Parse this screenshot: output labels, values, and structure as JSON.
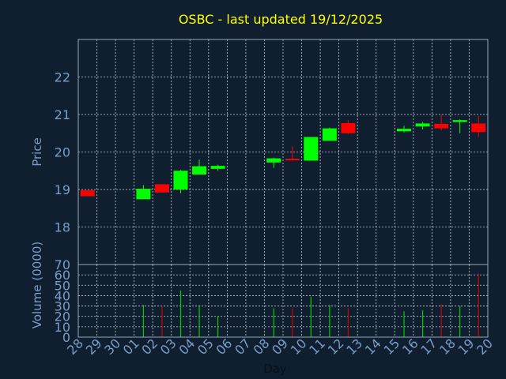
{
  "chart_data": [
    {
      "type": "candlestick",
      "title": "OSBC - last updated 19/12/2025",
      "ylabel": "Price",
      "ylim": [
        17,
        23
      ],
      "yticks": [
        18,
        19,
        20,
        21,
        22
      ],
      "grid": true,
      "categories": [
        "28",
        "29",
        "30",
        "01",
        "02",
        "03",
        "04",
        "05",
        "06",
        "07",
        "08",
        "09",
        "10",
        "11",
        "12",
        "13",
        "14",
        "15",
        "16",
        "17",
        "18",
        "19",
        "20"
      ],
      "candles": [
        {
          "day": "28",
          "open": 18.98,
          "close": 18.82,
          "high": 18.98,
          "low": 18.82
        },
        {
          "day": "01",
          "open": 18.74,
          "close": 19.02,
          "high": 19.12,
          "low": 18.74
        },
        {
          "day": "02",
          "open": 19.14,
          "close": 18.92,
          "high": 19.14,
          "low": 18.92
        },
        {
          "day": "03",
          "open": 19.0,
          "close": 19.5,
          "high": 19.52,
          "low": 18.9
        },
        {
          "day": "04",
          "open": 19.4,
          "close": 19.62,
          "high": 19.8,
          "low": 19.4
        },
        {
          "day": "05",
          "open": 19.55,
          "close": 19.63,
          "high": 19.66,
          "low": 19.5
        },
        {
          "day": "08",
          "open": 19.72,
          "close": 19.83,
          "high": 19.85,
          "low": 19.58
        },
        {
          "day": "09",
          "open": 19.82,
          "close": 19.8,
          "high": 20.15,
          "low": 19.78
        },
        {
          "day": "10",
          "open": 19.77,
          "close": 20.4,
          "high": 20.4,
          "low": 19.77
        },
        {
          "day": "11",
          "open": 20.3,
          "close": 20.63,
          "high": 20.65,
          "low": 20.3
        },
        {
          "day": "12",
          "open": 20.77,
          "close": 20.5,
          "high": 20.85,
          "low": 20.48
        },
        {
          "day": "15",
          "open": 20.55,
          "close": 20.62,
          "high": 20.7,
          "low": 20.52
        },
        {
          "day": "16",
          "open": 20.68,
          "close": 20.76,
          "high": 20.8,
          "low": 20.6
        },
        {
          "day": "17",
          "open": 20.75,
          "close": 20.63,
          "high": 21.0,
          "low": 20.58
        },
        {
          "day": "18",
          "open": 20.8,
          "close": 20.85,
          "high": 20.87,
          "low": 20.5
        },
        {
          "day": "19",
          "open": 20.76,
          "close": 20.53,
          "high": 20.95,
          "low": 20.4
        }
      ],
      "colors": {
        "up": "#00ff00",
        "down": "#ff0000"
      }
    },
    {
      "type": "bar",
      "ylabel": "Volume (0000)",
      "xlabel": "Day",
      "ylim": [
        0,
        70
      ],
      "yticks": [
        0,
        10,
        20,
        30,
        40,
        50,
        60,
        70
      ],
      "grid": true,
      "categories": [
        "28",
        "29",
        "30",
        "01",
        "02",
        "03",
        "04",
        "05",
        "06",
        "07",
        "08",
        "09",
        "10",
        "11",
        "12",
        "13",
        "14",
        "15",
        "16",
        "17",
        "18",
        "19",
        "20"
      ],
      "bars": [
        {
          "day": "01",
          "value": 31,
          "direction": "up"
        },
        {
          "day": "02",
          "value": 30,
          "direction": "down"
        },
        {
          "day": "03",
          "value": 45,
          "direction": "up"
        },
        {
          "day": "04",
          "value": 31,
          "direction": "up"
        },
        {
          "day": "05",
          "value": 20,
          "direction": "up"
        },
        {
          "day": "08",
          "value": 28,
          "direction": "up"
        },
        {
          "day": "09",
          "value": 28,
          "direction": "down"
        },
        {
          "day": "10",
          "value": 39,
          "direction": "up"
        },
        {
          "day": "11",
          "value": 31,
          "direction": "up"
        },
        {
          "day": "12",
          "value": 28,
          "direction": "down"
        },
        {
          "day": "15",
          "value": 25,
          "direction": "up"
        },
        {
          "day": "16",
          "value": 26,
          "direction": "up"
        },
        {
          "day": "17",
          "value": 32,
          "direction": "down"
        },
        {
          "day": "18",
          "value": 30,
          "direction": "up"
        },
        {
          "day": "19",
          "value": 61,
          "direction": "down"
        }
      ],
      "colors": {
        "up": "#00cc00",
        "down": "#cc0000"
      }
    }
  ],
  "style": {
    "background": "#0f1f30",
    "title_color": "#ffff00",
    "axis_text_color": "#7a9cc6",
    "frame_color": "#9aaabb",
    "grid_color": "#c8d0d8"
  }
}
